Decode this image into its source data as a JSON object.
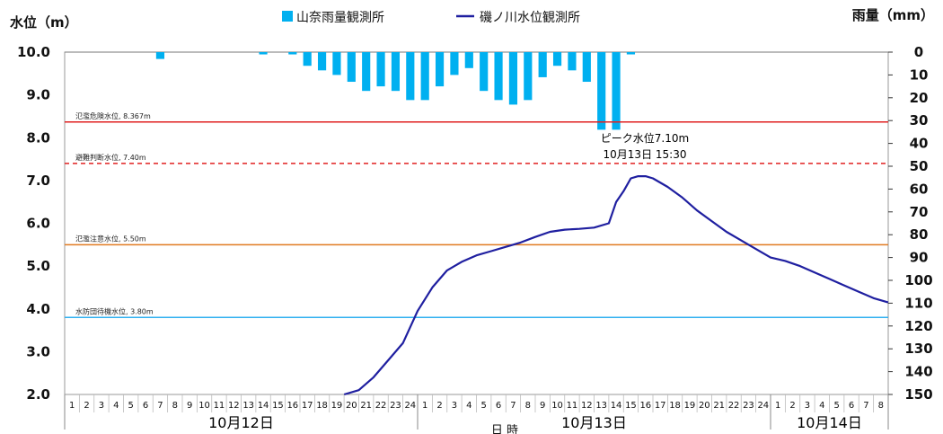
{
  "chart_data": {
    "type": "line+bar",
    "left_axis_title": "水位（m）",
    "right_axis_title": "雨量（mm）",
    "xlabel": "日 時",
    "left_ylim": [
      2.0,
      10.0
    ],
    "left_ticks": [
      "10.0",
      "9.0",
      "8.0",
      "7.0",
      "6.0",
      "5.0",
      "4.0",
      "3.0",
      "2.0"
    ],
    "right_ylim": [
      0,
      150
    ],
    "right_ticks": [
      "0",
      "10",
      "20",
      "30",
      "40",
      "50",
      "60",
      "70",
      "80",
      "90",
      "100",
      "110",
      "120",
      "130",
      "140",
      "150"
    ],
    "legend": {
      "rain_label": "山奈雨量観測所",
      "level_label": "磯ノ川水位観測所",
      "placement": "top"
    },
    "colors": {
      "rain": "#00B0F0",
      "level": "#1F1FA0",
      "danger": "#E02020",
      "evacuation": "#E02020",
      "caution": "#E07A20",
      "standby": "#30B0F0"
    },
    "reference_lines": [
      {
        "label": "氾濫危険水位, 8.367m",
        "value": 8.367,
        "style": "solid",
        "color_key": "danger"
      },
      {
        "label": "避難判断水位, 7.40m",
        "value": 7.4,
        "style": "dashed",
        "color_key": "evacuation"
      },
      {
        "label": "氾濫注意水位, 5.50m",
        "value": 5.5,
        "style": "solid",
        "color_key": "caution"
      },
      {
        "label": "水防団待機水位, 3.80m",
        "value": 3.8,
        "style": "solid",
        "color_key": "standby"
      }
    ],
    "annotation": {
      "line1": "ピーク水位7.10m",
      "line2": "10月13日 15:30"
    },
    "hour_labels": [
      "1",
      "2",
      "3",
      "4",
      "5",
      "6",
      "7",
      "8",
      "9",
      "10",
      "11",
      "12",
      "13",
      "14",
      "15",
      "16",
      "17",
      "18",
      "19",
      "20",
      "21",
      "22",
      "23",
      "24",
      "1",
      "2",
      "3",
      "4",
      "5",
      "6",
      "7",
      "8",
      "9",
      "10",
      "11",
      "12",
      "13",
      "14",
      "15",
      "16",
      "17",
      "18",
      "19",
      "20",
      "21",
      "22",
      "23",
      "24",
      "1",
      "2",
      "3",
      "4",
      "5",
      "6",
      "7",
      "8"
    ],
    "dates": [
      {
        "label": "10月12日",
        "span": [
          0,
          24
        ]
      },
      {
        "label": "10月13日",
        "span": [
          24,
          48
        ]
      },
      {
        "label": "10月14日",
        "span": [
          48,
          56
        ]
      }
    ],
    "rainfall_mm": [
      0,
      0,
      0,
      0,
      0,
      0,
      3,
      0,
      0,
      0,
      0,
      0,
      0,
      1,
      0,
      1,
      6,
      8,
      10,
      13,
      17,
      15,
      17,
      21,
      21,
      15,
      10,
      7,
      17,
      21,
      23,
      21,
      11,
      6,
      8,
      13,
      34,
      34,
      1,
      0,
      0,
      0,
      0,
      0,
      0,
      0,
      0,
      0,
      0,
      0,
      0,
      0,
      0,
      0,
      0,
      0
    ],
    "water_level": [
      [
        19.0,
        2.0
      ],
      [
        20.0,
        2.1
      ],
      [
        21.0,
        2.4
      ],
      [
        22.0,
        2.8
      ],
      [
        23.0,
        3.2
      ],
      [
        24.0,
        3.95
      ],
      [
        25.0,
        4.5
      ],
      [
        26.0,
        4.9
      ],
      [
        27.0,
        5.1
      ],
      [
        28.0,
        5.25
      ],
      [
        29.0,
        5.35
      ],
      [
        30.0,
        5.45
      ],
      [
        31.0,
        5.55
      ],
      [
        32.0,
        5.68
      ],
      [
        33.0,
        5.8
      ],
      [
        34.0,
        5.85
      ],
      [
        35.0,
        5.87
      ],
      [
        36.0,
        5.9
      ],
      [
        37.0,
        6.0
      ],
      [
        37.5,
        6.5
      ],
      [
        38.0,
        6.75
      ],
      [
        38.5,
        7.05
      ],
      [
        39.0,
        7.1
      ],
      [
        39.5,
        7.1
      ],
      [
        40.0,
        7.05
      ],
      [
        41.0,
        6.85
      ],
      [
        42.0,
        6.6
      ],
      [
        43.0,
        6.3
      ],
      [
        44.0,
        6.05
      ],
      [
        45.0,
        5.8
      ],
      [
        46.0,
        5.6
      ],
      [
        47.0,
        5.4
      ],
      [
        48.0,
        5.2
      ],
      [
        49.0,
        5.12
      ],
      [
        50.0,
        5.0
      ],
      [
        51.0,
        4.85
      ],
      [
        52.0,
        4.7
      ],
      [
        53.0,
        4.55
      ],
      [
        54.0,
        4.4
      ],
      [
        55.0,
        4.25
      ],
      [
        56.0,
        4.15
      ]
    ]
  }
}
